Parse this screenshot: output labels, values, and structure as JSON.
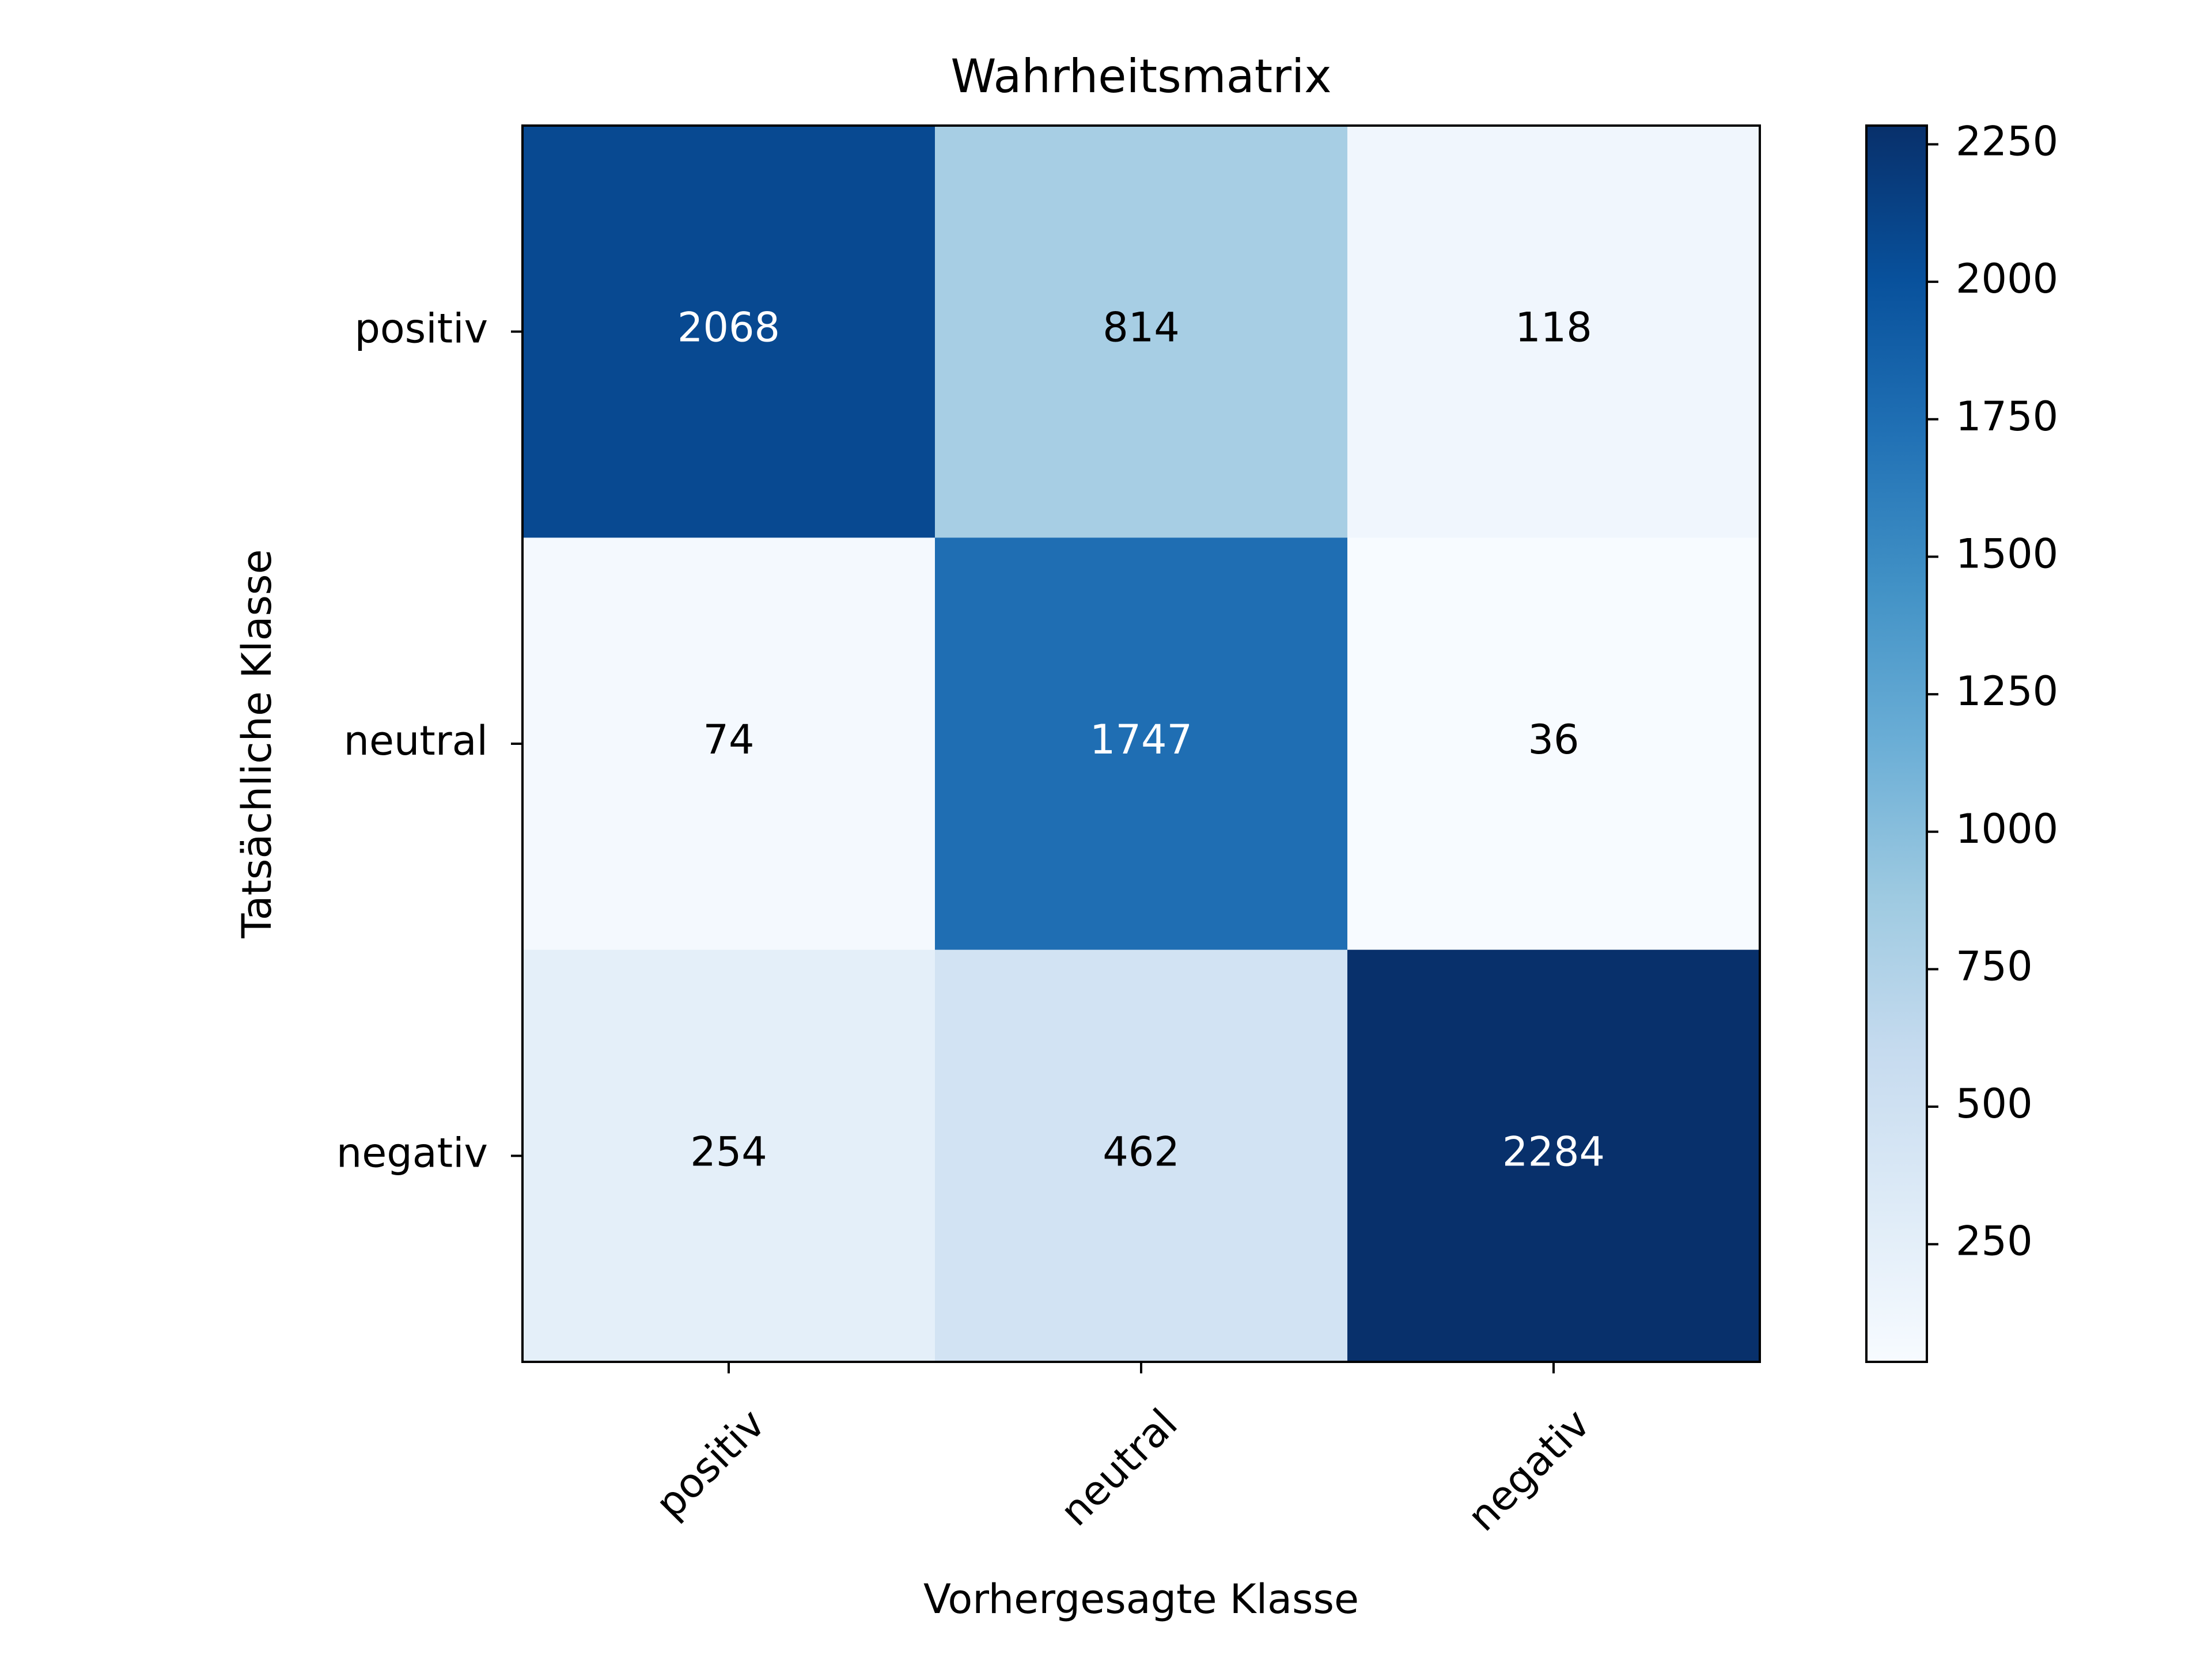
{
  "chart_data": {
    "type": "heatmap",
    "title": "Wahrheitsmatrix",
    "xlabel": "Vorhergesagte Klasse",
    "ylabel": "Tatsächliche Klasse",
    "x_categories": [
      "positiv",
      "neutral",
      "negativ"
    ],
    "y_categories": [
      "positiv",
      "neutral",
      "negativ"
    ],
    "values": [
      [
        2068,
        814,
        118
      ],
      [
        74,
        1747,
        36
      ],
      [
        254,
        462,
        2284
      ]
    ],
    "colormap": "Blues",
    "colormap_stops": [
      "#f7fbff",
      "#deebf7",
      "#c6dbef",
      "#9ecae1",
      "#6baed6",
      "#4292c6",
      "#2171b5",
      "#08519c",
      "#08306b"
    ],
    "colorbar": {
      "range": [
        36,
        2284
      ],
      "ticks": [
        250,
        500,
        750,
        1000,
        1250,
        1500,
        1750,
        2000,
        2250
      ]
    },
    "text_colors": {
      "dark": "#000000",
      "light": "#ffffff"
    }
  }
}
